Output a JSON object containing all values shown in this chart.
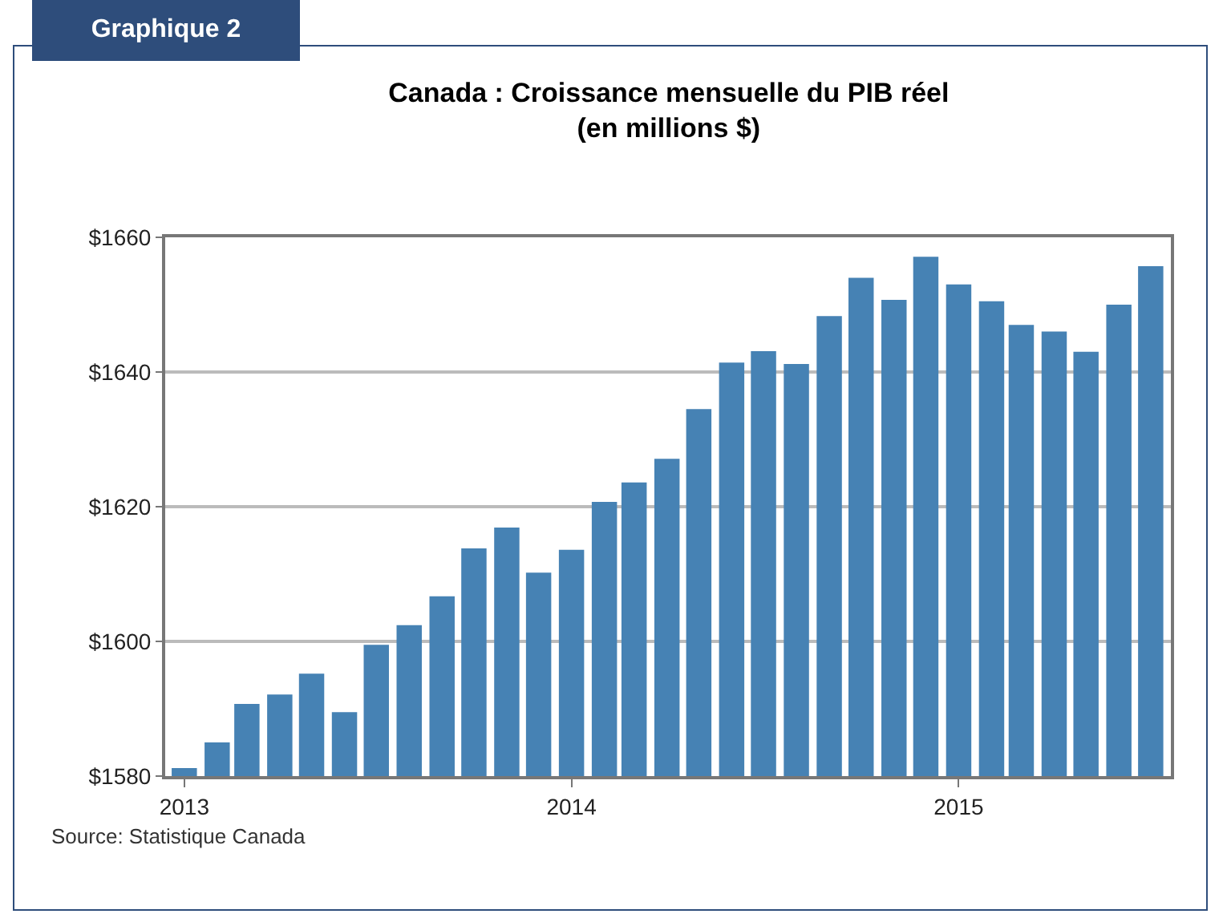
{
  "chart_data": {
    "type": "bar",
    "title": "Canada : Croissance mensuelle du PIB réel\n(en millions $)",
    "annotations": [
      "Graphique 2",
      "Source: Statistique Canada"
    ],
    "x": [
      "2013-01",
      "2013-02",
      "2013-03",
      "2013-04",
      "2013-05",
      "2013-06",
      "2013-07",
      "2013-08",
      "2013-09",
      "2013-10",
      "2013-11",
      "2013-12",
      "2014-01",
      "2014-02",
      "2014-03",
      "2014-04",
      "2014-05",
      "2014-06",
      "2014-07",
      "2014-08",
      "2014-09",
      "2014-10",
      "2014-11",
      "2014-12",
      "2015-01",
      "2015-02",
      "2015-03",
      "2015-04",
      "2015-05",
      "2015-06",
      "2015-07"
    ],
    "values": [
      1581.2,
      1585,
      1590.7,
      1592.1,
      1595.2,
      1589.5,
      1599.5,
      1602.4,
      1606.7,
      1613.8,
      1616.9,
      1610.2,
      1613.6,
      1620.7,
      1623.6,
      1627.1,
      1634.5,
      1641.4,
      1643.1,
      1641.2,
      1648.3,
      1654,
      1650.7,
      1657.1,
      1653,
      1650.5,
      1647,
      1646,
      1643,
      1650,
      1655.7
    ],
    "color": "#4682b4",
    "xlim": [
      "2012-12-14",
      "2015-07-20"
    ],
    "xticks": [
      "2013",
      "2014",
      "2015"
    ],
    "ylim": [
      1580,
      1660
    ],
    "yticks": [
      {
        "value": 1580,
        "label": "$1580"
      },
      {
        "value": 1600,
        "label": "$1600"
      },
      {
        "value": 1620,
        "label": "$1620"
      },
      {
        "value": 1640,
        "label": "$1640"
      },
      {
        "value": 1660,
        "label": "$1660"
      }
    ],
    "grid": "y",
    "legend": false
  }
}
